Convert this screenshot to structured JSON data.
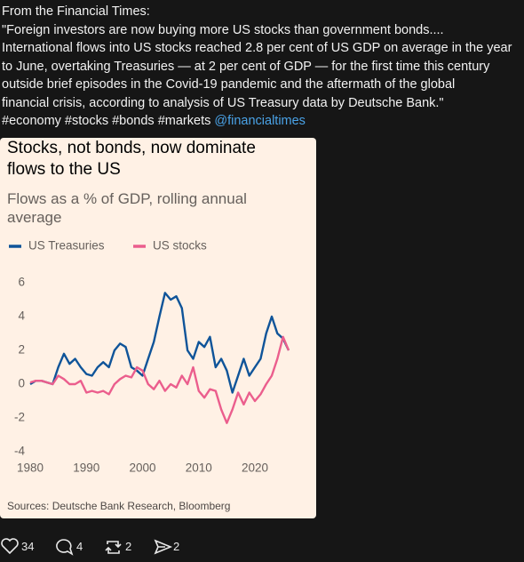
{
  "post": {
    "text_lines": [
      "From the Financial Times:",
      "\"Foreign investors are now buying more US stocks than government bonds....",
      "International flows into US stocks reached 2.8 per cent of US GDP on average in the year",
      "to June, overtaking Treasuries — at 2 per cent of GDP — for the first time this century",
      "outside brief episodes in the Covid-19 pandemic and the aftermath of the global",
      "financial crisis, according to analysis of US Treasury data by Deutsche Bank.\""
    ],
    "hashtags": "#economy #stocks #bonds #markets",
    "mention": "@financialtimes"
  },
  "chart_data": {
    "type": "line",
    "title": "Stocks, not bonds, now dominate flows to the US",
    "subtitle": "Flows as a % of GDP, rolling annual average",
    "source": "Sources: Deutsche Bank Research, Bloomberg",
    "x": [
      1980,
      1981,
      1982,
      1983,
      1984,
      1985,
      1986,
      1987,
      1988,
      1989,
      1990,
      1991,
      1992,
      1993,
      1994,
      1995,
      1996,
      1997,
      1998,
      1999,
      2000,
      2001,
      2002,
      2003,
      2004,
      2005,
      2006,
      2007,
      2008,
      2009,
      2010,
      2011,
      2012,
      2013,
      2014,
      2015,
      2016,
      2017,
      2018,
      2019,
      2020,
      2021,
      2022,
      2023,
      2024,
      2025,
      2026
    ],
    "series": [
      {
        "name": "US Treasuries",
        "color": "#0f5499",
        "values": [
          0.0,
          0.2,
          0.2,
          0.1,
          0.0,
          1.0,
          1.8,
          1.2,
          1.5,
          1.0,
          0.6,
          0.5,
          1.0,
          1.3,
          1.0,
          2.0,
          2.4,
          2.2,
          1.0,
          0.8,
          0.5,
          1.5,
          2.5,
          4.0,
          5.4,
          5.0,
          5.2,
          4.5,
          2.0,
          1.5,
          2.5,
          2.2,
          2.8,
          1.0,
          1.5,
          0.8,
          -0.5,
          0.5,
          1.5,
          0.5,
          1.0,
          1.5,
          3.0,
          4.0,
          3.0,
          2.7,
          2.0
        ]
      },
      {
        "name": "US stocks",
        "color": "#eb5e8d",
        "values": [
          0.1,
          0.2,
          0.2,
          0.1,
          0.0,
          0.5,
          0.3,
          0.0,
          0.0,
          0.2,
          -0.5,
          -0.4,
          -0.5,
          -0.4,
          -0.6,
          0.0,
          0.3,
          0.5,
          0.4,
          1.0,
          0.8,
          0.0,
          -0.3,
          0.2,
          -0.4,
          0.0,
          -0.2,
          0.5,
          0.0,
          1.0,
          -0.4,
          -0.8,
          -0.3,
          -0.4,
          -1.5,
          -2.3,
          -1.5,
          -0.5,
          -1.2,
          -0.5,
          -1.0,
          -0.6,
          0.0,
          0.5,
          1.5,
          2.8,
          2.0
        ]
      }
    ],
    "xlim": [
      1980,
      2026
    ],
    "xticks": [
      1980,
      1990,
      2000,
      2010,
      2020
    ],
    "ylim": [
      -4,
      6
    ],
    "yticks": [
      -4,
      -2,
      0,
      2,
      4,
      6
    ],
    "grid": false,
    "legend": "top"
  },
  "footer": {
    "likes": 34,
    "replies": 4,
    "reposts": 2,
    "shares": 2
  }
}
